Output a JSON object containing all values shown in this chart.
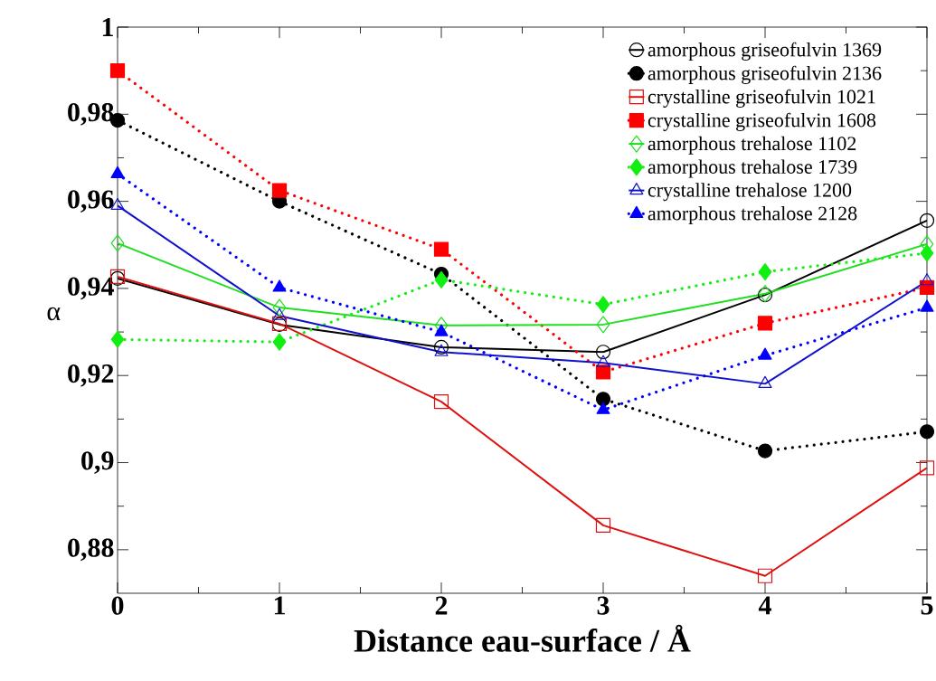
{
  "chart_data": {
    "type": "line",
    "xlabel": "Distance eau-surface / Å",
    "ylabel": "α",
    "x": [
      0,
      1,
      2,
      3,
      4,
      5
    ],
    "xlim": [
      0,
      5
    ],
    "xticks": [
      0,
      1,
      2,
      3,
      4,
      5
    ],
    "ylim": [
      0.87,
      1
    ],
    "yticks": [
      {
        "value": 0.88,
        "label": "0,88"
      },
      {
        "value": 0.9,
        "label": "0,9"
      },
      {
        "value": 0.92,
        "label": "0,92"
      },
      {
        "value": 0.94,
        "label": "0,94"
      },
      {
        "value": 0.96,
        "label": "0,96"
      },
      {
        "value": 0.98,
        "label": "0,98"
      },
      {
        "value": 1,
        "label": "1"
      }
    ],
    "grid": false,
    "legend": "top right",
    "series": [
      {
        "name": "amorphous griseofulvin 1369",
        "color": "#000000",
        "marker": "circle",
        "line_style": "solid",
        "values": [
          0.9423,
          0.9317,
          0.9265,
          0.9254,
          0.9385,
          0.9556
        ]
      },
      {
        "name": "amorphous griseofulvin 2136",
        "color": "#000000",
        "marker": "circle",
        "line_style": "dotted",
        "values": [
          0.9786,
          0.96,
          0.9433,
          0.9146,
          0.9027,
          0.9071
        ]
      },
      {
        "name": "crystalline griseofulvin 1021",
        "color": "#dd1111",
        "marker": "square",
        "line_style": "solid",
        "values": [
          0.9427,
          0.9319,
          0.914,
          0.8856,
          0.874,
          0.8988
        ]
      },
      {
        "name": "crystalline griseofulvin 1608",
        "color": "#ff0000",
        "marker": "square",
        "line_style": "dotted",
        "values": [
          0.99,
          0.9625,
          0.949,
          0.9208,
          0.932,
          0.9402
        ]
      },
      {
        "name": "amorphous trehalose 1102",
        "color": "#22dd22",
        "marker": "diamond",
        "line_style": "solid",
        "values": [
          0.9504,
          0.9356,
          0.9315,
          0.9317,
          0.9388,
          0.9502
        ]
      },
      {
        "name": "amorphous trehalose 1739",
        "color": "#11ee11",
        "marker": "diamond",
        "line_style": "dotted",
        "values": [
          0.9283,
          0.9277,
          0.942,
          0.9363,
          0.9438,
          0.9481
        ]
      },
      {
        "name": "crystalline trehalose 1200",
        "color": "#1111cc",
        "marker": "triangle",
        "line_style": "solid",
        "values": [
          0.959,
          0.9337,
          0.9254,
          0.9229,
          0.9181,
          0.9417
        ]
      },
      {
        "name": "amorphous trehalose 2128",
        "color": "#0000ff",
        "marker": "triangle",
        "line_style": "dotted",
        "values": [
          0.9663,
          0.9402,
          0.93,
          0.9121,
          0.9246,
          0.9356
        ]
      }
    ]
  }
}
